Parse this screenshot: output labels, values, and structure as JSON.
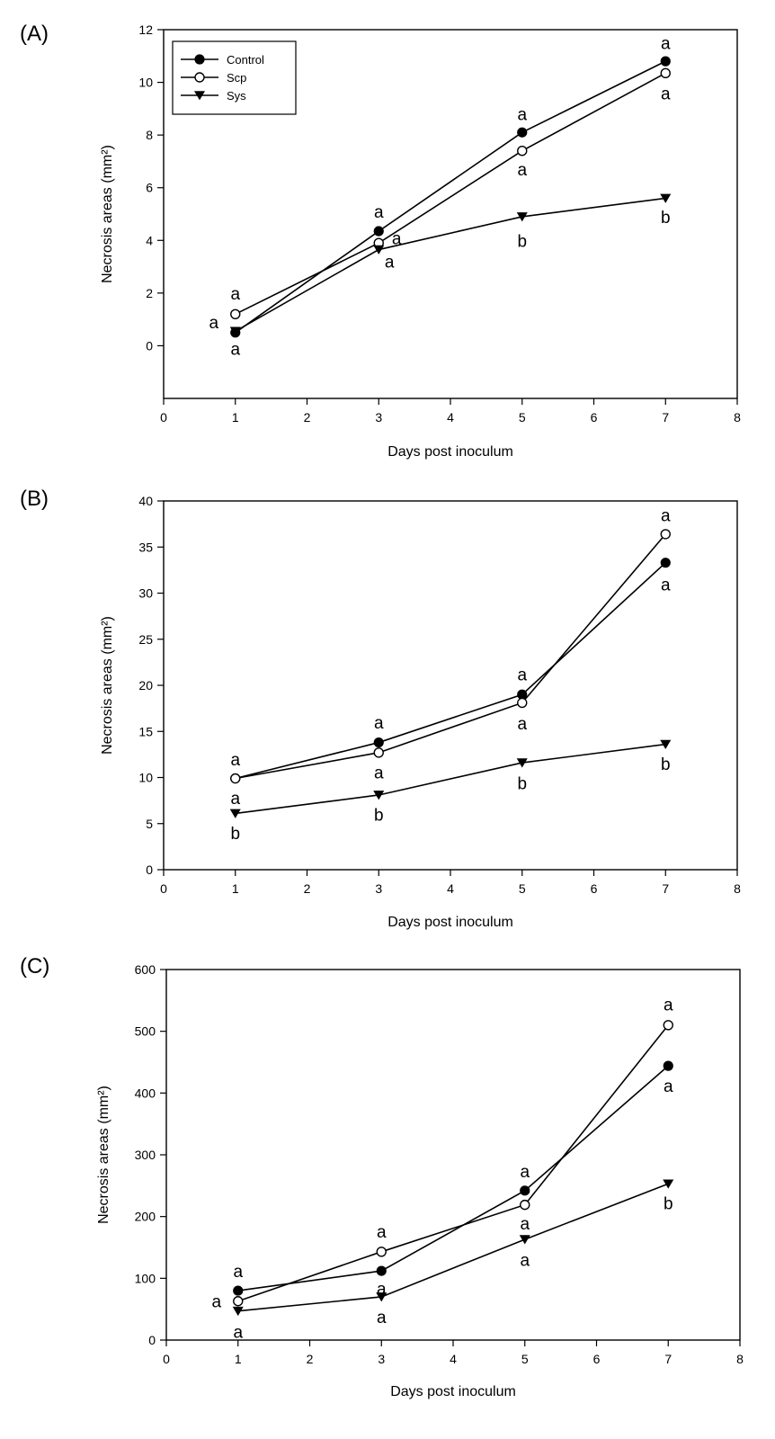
{
  "chart_data": [
    {
      "panel": "(A)",
      "type": "line",
      "xlabel": "Days post inoculum",
      "ylabel": "Necrosis areas (mm²)",
      "xlim": [
        0,
        8
      ],
      "ylim": [
        -2,
        12
      ],
      "xticks": [
        0,
        1,
        2,
        3,
        4,
        5,
        6,
        7,
        8
      ],
      "yticks": [
        0,
        2,
        4,
        6,
        8,
        10,
        12
      ],
      "x": [
        1,
        3,
        5,
        7
      ],
      "legend": {
        "position": "top-left",
        "entries": [
          "Control",
          "Scp",
          "Sys"
        ]
      },
      "series": [
        {
          "name": "Control",
          "marker": "filled-circle",
          "values": [
            0.5,
            4.35,
            8.1,
            10.8
          ]
        },
        {
          "name": "Scp",
          "marker": "open-circle",
          "values": [
            1.2,
            3.9,
            7.4,
            10.35
          ]
        },
        {
          "name": "Sys",
          "marker": "filled-triangle-down",
          "values": [
            0.55,
            3.65,
            4.9,
            5.6
          ]
        }
      ],
      "annotations": [
        {
          "x": 1,
          "y": 2.0,
          "text": "a"
        },
        {
          "x": 0.7,
          "y": 0.9,
          "text": "a"
        },
        {
          "x": 1,
          "y": -0.1,
          "text": "a"
        },
        {
          "x": 3,
          "y": 5.1,
          "text": "a"
        },
        {
          "x": 3.25,
          "y": 4.1,
          "text": "a"
        },
        {
          "x": 3.15,
          "y": 3.2,
          "text": "a"
        },
        {
          "x": 5,
          "y": 8.8,
          "text": "a"
        },
        {
          "x": 5,
          "y": 6.7,
          "text": "a"
        },
        {
          "x": 5,
          "y": 4.0,
          "text": "b"
        },
        {
          "x": 7,
          "y": 11.5,
          "text": "a"
        },
        {
          "x": 7,
          "y": 9.6,
          "text": "a"
        },
        {
          "x": 7,
          "y": 4.9,
          "text": "b"
        }
      ]
    },
    {
      "panel": "(B)",
      "type": "line",
      "xlabel": "Days post inoculum",
      "ylabel": "Necrosis areas (mm²)",
      "xlim": [
        0,
        8
      ],
      "ylim": [
        0,
        40
      ],
      "xticks": [
        0,
        1,
        2,
        3,
        4,
        5,
        6,
        7,
        8
      ],
      "yticks": [
        0,
        5,
        10,
        15,
        20,
        25,
        30,
        35,
        40
      ],
      "x": [
        1,
        3,
        5,
        7
      ],
      "series": [
        {
          "name": "Control",
          "marker": "filled-circle",
          "values": [
            9.9,
            13.8,
            19.0,
            33.3
          ]
        },
        {
          "name": "Scp",
          "marker": "open-circle",
          "values": [
            9.9,
            12.7,
            18.1,
            36.4
          ]
        },
        {
          "name": "Sys",
          "marker": "filled-triangle-down",
          "values": [
            6.1,
            8.1,
            11.6,
            13.6
          ]
        }
      ],
      "annotations": [
        {
          "x": 1,
          "y": 12.0,
          "text": "a"
        },
        {
          "x": 1,
          "y": 7.8,
          "text": "a"
        },
        {
          "x": 1,
          "y": 4.0,
          "text": "b"
        },
        {
          "x": 3,
          "y": 16.0,
          "text": "a"
        },
        {
          "x": 3,
          "y": 10.6,
          "text": "a"
        },
        {
          "x": 3,
          "y": 6.0,
          "text": "b"
        },
        {
          "x": 5,
          "y": 21.2,
          "text": "a"
        },
        {
          "x": 5,
          "y": 15.9,
          "text": "a"
        },
        {
          "x": 5,
          "y": 9.4,
          "text": "b"
        },
        {
          "x": 7,
          "y": 38.5,
          "text": "a"
        },
        {
          "x": 7,
          "y": 31.0,
          "text": "a"
        },
        {
          "x": 7,
          "y": 11.5,
          "text": "b"
        }
      ]
    },
    {
      "panel": "(C)",
      "type": "line",
      "xlabel": "Days post inoculum",
      "ylabel": "Necrosis areas (mm²)",
      "xlim": [
        0,
        8
      ],
      "ylim": [
        0,
        600
      ],
      "xticks": [
        0,
        1,
        2,
        3,
        4,
        5,
        6,
        7,
        8
      ],
      "yticks": [
        0,
        100,
        200,
        300,
        400,
        500,
        600
      ],
      "x": [
        1,
        3,
        5,
        7
      ],
      "series": [
        {
          "name": "Control",
          "marker": "filled-circle",
          "values": [
            80,
            112,
            242,
            444
          ]
        },
        {
          "name": "Scp",
          "marker": "open-circle",
          "values": [
            63,
            143,
            219,
            510
          ]
        },
        {
          "name": "Sys",
          "marker": "filled-triangle-down",
          "values": [
            47,
            70,
            163,
            253
          ]
        }
      ],
      "annotations": [
        {
          "x": 1,
          "y": 112,
          "text": "a"
        },
        {
          "x": 0.7,
          "y": 63,
          "text": "a"
        },
        {
          "x": 1,
          "y": 14,
          "text": "a"
        },
        {
          "x": 3,
          "y": 176,
          "text": "a"
        },
        {
          "x": 3,
          "y": 84,
          "text": "a"
        },
        {
          "x": 3,
          "y": 38,
          "text": "a"
        },
        {
          "x": 5,
          "y": 274,
          "text": "a"
        },
        {
          "x": 5,
          "y": 189,
          "text": "a"
        },
        {
          "x": 5,
          "y": 130,
          "text": "a"
        },
        {
          "x": 7,
          "y": 544,
          "text": "a"
        },
        {
          "x": 7,
          "y": 412,
          "text": "a"
        },
        {
          "x": 7,
          "y": 222,
          "text": "b"
        }
      ]
    }
  ]
}
